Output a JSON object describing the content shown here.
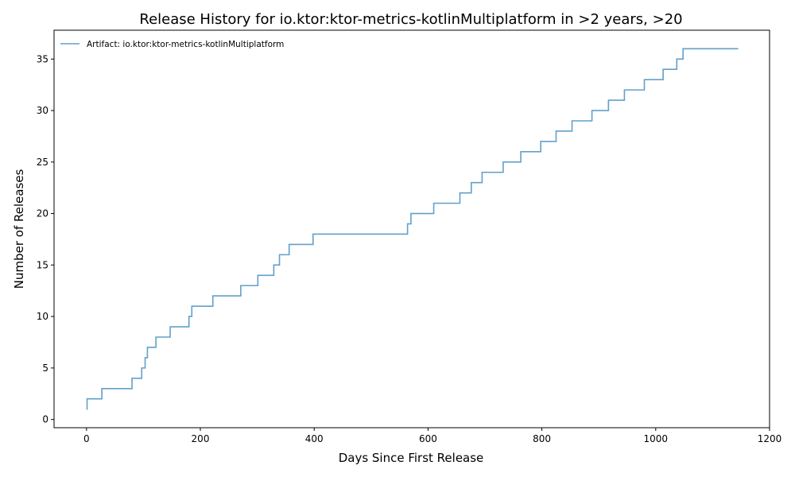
{
  "chart_data": {
    "type": "line",
    "drawstyle": "steps-post",
    "title": "Release History for io.ktor:ktor-metrics-kotlinMultiplatform in >2 years, >20",
    "xlabel": "Days Since First Release",
    "ylabel": "Number of Releases",
    "xlim": [
      -57,
      1200
    ],
    "ylim": [
      -0.8,
      37.8
    ],
    "xticks": [
      0,
      200,
      400,
      600,
      800,
      1000,
      1200
    ],
    "yticks": [
      0,
      5,
      10,
      15,
      20,
      25,
      30,
      35
    ],
    "grid": false,
    "legend_position": "top-left",
    "series": [
      {
        "name": "Artifact: io.ktor:ktor-metrics-kotlinMultiplatform",
        "color": "#1f77b4",
        "x": [
          0,
          1,
          27,
          80,
          97,
          103,
          107,
          122,
          147,
          180,
          185,
          222,
          271,
          301,
          329,
          339,
          356,
          398,
          564,
          570,
          610,
          656,
          676,
          695,
          732,
          763,
          798,
          825,
          853,
          888,
          917,
          945,
          980,
          1013,
          1037,
          1048,
          1145
        ],
        "y": [
          1,
          2,
          3,
          4,
          5,
          6,
          7,
          8,
          9,
          10,
          11,
          12,
          13,
          14,
          15,
          16,
          17,
          18,
          19,
          20,
          21,
          22,
          23,
          24,
          25,
          26,
          27,
          28,
          29,
          30,
          31,
          32,
          33,
          34,
          35,
          36,
          36
        ]
      }
    ]
  }
}
